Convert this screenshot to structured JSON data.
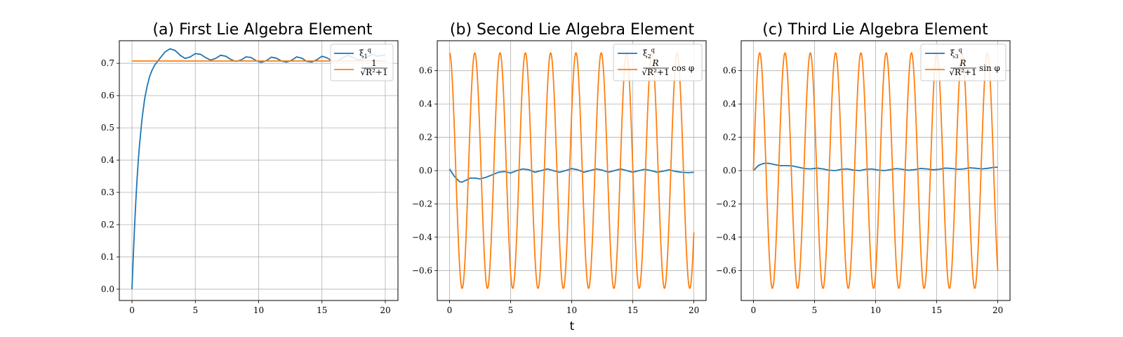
{
  "chart_data": [
    {
      "type": "line",
      "title": "(a) First Lie Algebra Element",
      "xlim": [
        -1,
        21
      ],
      "ylim": [
        -0.035,
        0.77
      ],
      "xticks": [
        0,
        5,
        10,
        15,
        20
      ],
      "yticks": [
        0.0,
        0.1,
        0.2,
        0.3,
        0.4,
        0.5,
        0.6,
        0.7
      ],
      "ytick_labels": [
        "0.0",
        "0.1",
        "0.2",
        "0.3",
        "0.4",
        "0.5",
        "0.6",
        "0.7"
      ],
      "grid": true,
      "legend_position": "top-right",
      "series": [
        {
          "name": "ξ1q",
          "color": "#1f77b4",
          "x": [
            0,
            0.1,
            0.2,
            0.3,
            0.4,
            0.5,
            0.6,
            0.8,
            1.0,
            1.2,
            1.4,
            1.6,
            1.8,
            2.0,
            2.3,
            2.6,
            3.0,
            3.4,
            3.8,
            4.2,
            4.6,
            5.0,
            5.4,
            5.8,
            6.2,
            6.6,
            7.0,
            7.4,
            7.8,
            8.2,
            8.6,
            9.0,
            9.4,
            9.8,
            10.2,
            10.6,
            11.0,
            11.4,
            11.8,
            12.2,
            12.6,
            13.0,
            13.4,
            13.8,
            14.2,
            14.6,
            15.0,
            15.4,
            15.8,
            16.2,
            16.6,
            17.0,
            17.4,
            17.8,
            18.2,
            18.6,
            19.0,
            19.4,
            19.8,
            20.0
          ],
          "values": [
            0.0,
            0.1,
            0.19,
            0.27,
            0.34,
            0.4,
            0.45,
            0.53,
            0.59,
            0.63,
            0.66,
            0.68,
            0.695,
            0.705,
            0.72,
            0.735,
            0.745,
            0.74,
            0.725,
            0.715,
            0.72,
            0.73,
            0.728,
            0.718,
            0.71,
            0.715,
            0.725,
            0.722,
            0.712,
            0.706,
            0.71,
            0.72,
            0.718,
            0.708,
            0.703,
            0.708,
            0.719,
            0.716,
            0.707,
            0.704,
            0.709,
            0.72,
            0.716,
            0.706,
            0.704,
            0.711,
            0.722,
            0.717,
            0.707,
            0.707,
            0.716,
            0.725,
            0.719,
            0.711,
            0.712,
            0.72,
            0.728,
            0.722,
            0.725,
            0.726
          ]
        },
        {
          "name": "1/√(R²+1)",
          "color": "#ff7f0e",
          "x": [
            0,
            20
          ],
          "values": [
            0.7071,
            0.7071
          ]
        }
      ]
    },
    {
      "type": "line",
      "title": "(b) Second Lie Algebra Element",
      "xlabel": "t",
      "xlim": [
        -1,
        21
      ],
      "ylim": [
        -0.78,
        0.78
      ],
      "xticks": [
        0,
        5,
        10,
        15,
        20
      ],
      "yticks": [
        -0.6,
        -0.4,
        -0.2,
        0.0,
        0.2,
        0.4,
        0.6
      ],
      "ytick_labels": [
        "−0.6",
        "−0.4",
        "−0.2",
        "0.0",
        "0.2",
        "0.4",
        "0.6"
      ],
      "grid": true,
      "legend_position": "top-right",
      "series": [
        {
          "name": "ξ2q",
          "color": "#1f77b4",
          "x": [
            0,
            0.4,
            0.8,
            1.0,
            1.3,
            1.7,
            2.1,
            2.5,
            3.0,
            3.5,
            4.0,
            4.5,
            5.0,
            5.5,
            6.0,
            6.5,
            7.0,
            7.5,
            8.0,
            8.5,
            9.0,
            9.5,
            10.0,
            10.5,
            11.0,
            11.5,
            12.0,
            12.5,
            13.0,
            13.5,
            14.0,
            14.5,
            15.0,
            15.5,
            16.0,
            16.5,
            17.0,
            17.5,
            18.0,
            18.5,
            19.0,
            19.5,
            20.0
          ],
          "values": [
            0.01,
            -0.035,
            -0.065,
            -0.07,
            -0.06,
            -0.045,
            -0.045,
            -0.05,
            -0.04,
            -0.025,
            -0.01,
            -0.005,
            -0.015,
            0.0,
            0.01,
            0.005,
            -0.01,
            0.0,
            0.01,
            0.0,
            -0.01,
            0.0,
            0.012,
            0.005,
            -0.01,
            0.0,
            0.01,
            0.003,
            -0.01,
            0.0,
            0.01,
            0.0,
            -0.01,
            0.0,
            0.008,
            0.0,
            -0.01,
            -0.003,
            0.005,
            -0.005,
            -0.01,
            -0.012,
            -0.01
          ]
        },
        {
          "name": "R/√(R²+1) cos φ",
          "color": "#ff7f0e",
          "function": "cos",
          "amplitude": 0.7071,
          "period": 2.07,
          "phase": 0,
          "x_range": [
            0,
            20
          ]
        }
      ]
    },
    {
      "type": "line",
      "title": "(c) Third Lie Algebra Element",
      "xlim": [
        -1,
        21
      ],
      "ylim": [
        -0.78,
        0.78
      ],
      "xticks": [
        0,
        5,
        10,
        15,
        20
      ],
      "yticks": [
        -0.6,
        -0.4,
        -0.2,
        0.0,
        0.2,
        0.4,
        0.6
      ],
      "ytick_labels": [
        "−0.6",
        "−0.4",
        "−0.2",
        "0.0",
        "0.2",
        "0.4",
        "0.6"
      ],
      "grid": true,
      "legend_position": "top-right",
      "series": [
        {
          "name": "ξ3q",
          "color": "#1f77b4",
          "x": [
            0,
            0.2,
            0.4,
            0.7,
            1.0,
            1.4,
            1.8,
            2.2,
            2.7,
            3.2,
            3.7,
            4.2,
            4.7,
            5.2,
            5.7,
            6.2,
            6.7,
            7.2,
            7.7,
            8.2,
            8.7,
            9.2,
            9.7,
            10.2,
            10.7,
            11.2,
            11.7,
            12.2,
            12.7,
            13.2,
            13.7,
            14.2,
            14.7,
            15.2,
            15.7,
            16.2,
            16.7,
            17.2,
            17.7,
            18.2,
            18.7,
            19.2,
            19.7,
            20.0
          ],
          "values": [
            0.0,
            0.015,
            0.03,
            0.04,
            0.045,
            0.042,
            0.035,
            0.03,
            0.03,
            0.028,
            0.02,
            0.012,
            0.01,
            0.015,
            0.01,
            0.002,
            0.0,
            0.008,
            0.01,
            0.003,
            0.0,
            0.008,
            0.01,
            0.003,
            0.0,
            0.006,
            0.012,
            0.008,
            0.002,
            0.006,
            0.013,
            0.01,
            0.005,
            0.008,
            0.015,
            0.013,
            0.008,
            0.01,
            0.017,
            0.014,
            0.01,
            0.014,
            0.02,
            0.02
          ]
        },
        {
          "name": "R/√(R²+1) sin φ",
          "color": "#ff7f0e",
          "function": "sin",
          "amplitude": 0.7071,
          "period": 2.07,
          "phase": 0,
          "x_range": [
            0,
            20
          ]
        }
      ]
    }
  ]
}
